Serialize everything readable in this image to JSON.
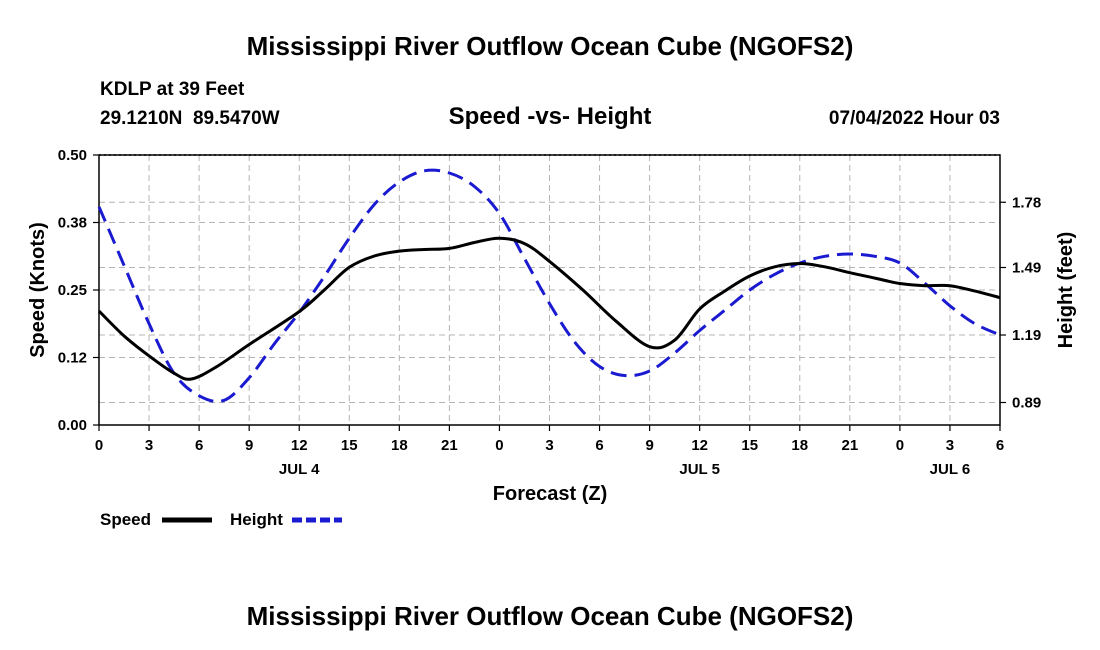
{
  "page": {
    "top_title": "Mississippi River Outflow Ocean Cube (NGOFS2)",
    "bottom_title": "Mississippi River Outflow Ocean Cube (NGOFS2)",
    "station": "KDLP at 39 Feet",
    "coords": "29.1210N  89.5470W",
    "datetime": "07/04/2022 Hour 03"
  },
  "colors": {
    "speed": "#000000",
    "height": "#1a1ad0",
    "grid": "#b4b4b4"
  },
  "chart_data": {
    "type": "line",
    "title": "Speed -vs- Height",
    "xlabel": "Forecast (Z)",
    "ylabel": "Speed (Knots)",
    "ylabel_right": "Height (feet)",
    "x_range_hours": [
      0,
      54
    ],
    "y_left_range": [
      0,
      0.5
    ],
    "y_right_range": [
      0.79,
      1.99
    ],
    "x_tick_values": [
      0,
      3,
      6,
      9,
      12,
      15,
      18,
      21,
      24,
      27,
      30,
      33,
      36,
      39,
      42,
      45,
      48,
      51,
      54
    ],
    "x_tick_labels": [
      "0",
      "3",
      "6",
      "9",
      "12",
      "15",
      "18",
      "21",
      "0",
      "3",
      "6",
      "9",
      "12",
      "15",
      "18",
      "21",
      "0",
      "3",
      "6"
    ],
    "day_labels": [
      {
        "label": "JUL 4",
        "hour": 12
      },
      {
        "label": "JUL 5",
        "hour": 36
      },
      {
        "label": "JUL 6",
        "hour": 51
      }
    ],
    "y_left_ticks": [
      {
        "value": 0.0,
        "label": "0.00"
      },
      {
        "value": 0.125,
        "label": "0.12"
      },
      {
        "value": 0.25,
        "label": "0.25"
      },
      {
        "value": 0.375,
        "label": "0.38"
      },
      {
        "value": 0.5,
        "label": "0.50"
      }
    ],
    "y_right_ticks": [
      {
        "value": 0.89,
        "label": "0.89"
      },
      {
        "value": 1.19,
        "label": "1.19"
      },
      {
        "value": 1.49,
        "label": "1.49"
      },
      {
        "value": 1.78,
        "label": "1.78"
      }
    ],
    "series": [
      {
        "name": "Speed",
        "axis": "left",
        "style": "solid",
        "x": [
          0,
          1.5,
          3,
          4.5,
          5.5,
          7,
          9,
          12,
          13.5,
          15,
          16.5,
          18,
          19.5,
          21,
          22.5,
          24,
          25.5,
          27,
          29,
          31,
          33,
          34.5,
          36,
          37.5,
          39,
          40.5,
          42,
          43.5,
          45,
          46.5,
          48,
          49.5,
          51,
          52.5,
          54
        ],
        "values": [
          0.211,
          0.165,
          0.128,
          0.096,
          0.085,
          0.107,
          0.149,
          0.21,
          0.25,
          0.292,
          0.313,
          0.322,
          0.325,
          0.327,
          0.338,
          0.346,
          0.336,
          0.303,
          0.25,
          0.192,
          0.145,
          0.157,
          0.215,
          0.248,
          0.276,
          0.293,
          0.299,
          0.293,
          0.282,
          0.272,
          0.262,
          0.258,
          0.258,
          0.248,
          0.236
        ]
      },
      {
        "name": "Height",
        "axis": "right",
        "style": "dashed",
        "x": [
          0,
          1.5,
          3,
          4.5,
          6,
          7.5,
          9,
          10.5,
          12,
          13.5,
          15,
          16.5,
          18,
          19.5,
          21,
          22.5,
          24,
          25.5,
          27,
          28.5,
          30,
          31.5,
          33,
          34.5,
          36,
          37.5,
          39,
          40.5,
          42,
          43.5,
          45,
          46.5,
          48,
          49.5,
          51,
          52.5,
          54
        ],
        "values": [
          1.76,
          1.5,
          1.24,
          1.02,
          0.92,
          0.9,
          1.0,
          1.15,
          1.29,
          1.45,
          1.62,
          1.77,
          1.87,
          1.92,
          1.91,
          1.85,
          1.73,
          1.53,
          1.33,
          1.16,
          1.05,
          1.01,
          1.03,
          1.11,
          1.21,
          1.3,
          1.39,
          1.46,
          1.51,
          1.54,
          1.55,
          1.54,
          1.51,
          1.42,
          1.32,
          1.24,
          1.19
        ]
      }
    ]
  },
  "legend": {
    "speed_label": "Speed",
    "height_label": "Height"
  }
}
